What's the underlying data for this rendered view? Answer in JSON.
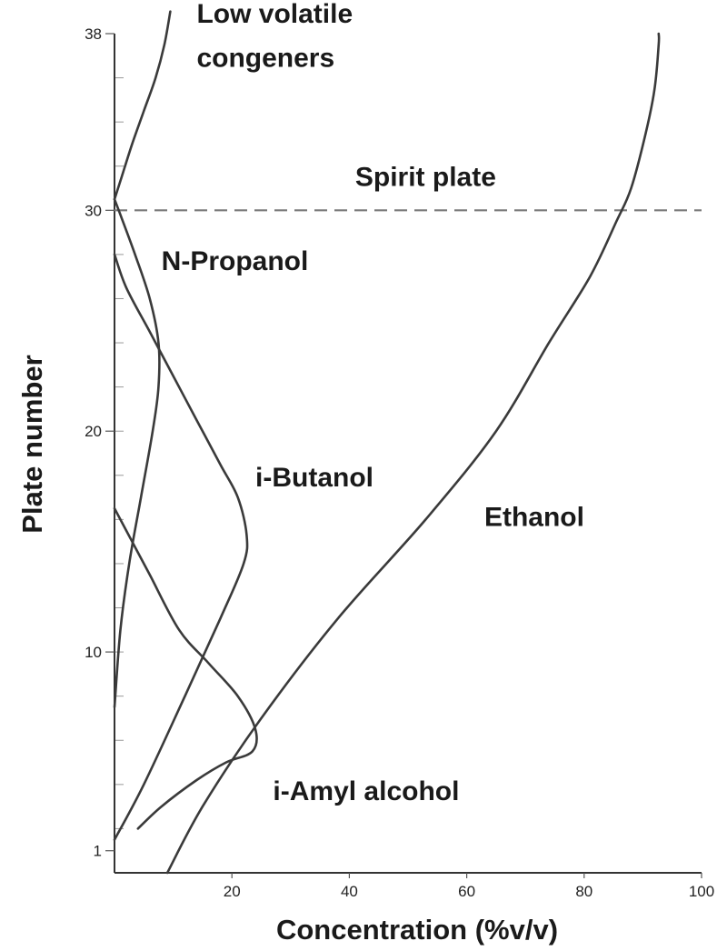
{
  "chart_data": {
    "type": "line",
    "title": "",
    "xlabel": "Concentration (%v/v)",
    "ylabel": "Plate number",
    "xlim": [
      0,
      100
    ],
    "ylim": [
      0,
      38
    ],
    "x_ticks": [
      20,
      40,
      60,
      80,
      100
    ],
    "y_ticks": [
      1,
      10,
      20,
      30,
      38
    ],
    "grid": false,
    "reference_line": {
      "label": "Spirit plate",
      "y": 30
    },
    "series": [
      {
        "name": "Ethanol",
        "points": [
          [
            9,
            0
          ],
          [
            15,
            3
          ],
          [
            25,
            7
          ],
          [
            38,
            11.5
          ],
          [
            53,
            16
          ],
          [
            65,
            20
          ],
          [
            74,
            24
          ],
          [
            81,
            27
          ],
          [
            85.5,
            29.5
          ],
          [
            88,
            31
          ],
          [
            90.5,
            33.5
          ],
          [
            92,
            35.5
          ],
          [
            92.7,
            37.5
          ],
          [
            92.7,
            38
          ]
        ]
      },
      {
        "name": "i-Amyl alcohol",
        "points": [
          [
            0,
            1.5
          ],
          [
            5,
            4
          ],
          [
            12,
            8
          ],
          [
            18,
            11.5
          ],
          [
            22,
            14
          ],
          [
            22.5,
            15.3
          ],
          [
            21,
            17
          ],
          [
            18,
            18.5
          ],
          [
            14,
            20.5
          ],
          [
            10,
            22.5
          ],
          [
            6,
            24.5
          ],
          [
            2,
            26.5
          ],
          [
            0,
            28
          ]
        ]
      },
      {
        "name": "i-Butanol",
        "points": [
          [
            0,
            16.5
          ],
          [
            3,
            15
          ],
          [
            6,
            13.5
          ],
          [
            11,
            11
          ],
          [
            16,
            9.5
          ],
          [
            21,
            8
          ],
          [
            24,
            6.5
          ],
          [
            23.5,
            5.5
          ],
          [
            19,
            5
          ],
          [
            14,
            4.2
          ],
          [
            8,
            3
          ],
          [
            4,
            2
          ]
        ]
      },
      {
        "name": "N-Propanol",
        "points": [
          [
            0,
            7.5
          ],
          [
            1,
            11
          ],
          [
            2.5,
            14
          ],
          [
            4.5,
            17
          ],
          [
            6.5,
            20
          ],
          [
            7.5,
            22
          ],
          [
            7.5,
            24
          ],
          [
            6,
            26
          ],
          [
            3.5,
            28
          ],
          [
            1,
            29.8
          ],
          [
            0,
            30.5
          ]
        ]
      },
      {
        "name": "Low volatile congeners",
        "points": [
          [
            0,
            30.5
          ],
          [
            1.2,
            31.5
          ],
          [
            3,
            33
          ],
          [
            5,
            34.5
          ],
          [
            7,
            36
          ],
          [
            8.5,
            37.5
          ],
          [
            9.5,
            39
          ]
        ]
      }
    ],
    "annotations": [
      {
        "text": "Low volatile",
        "x": 14,
        "y": 38.5
      },
      {
        "text": "congeners",
        "x": 14,
        "y": 36.5
      },
      {
        "text": "Spirit plate",
        "x": 41,
        "y": 31.1
      },
      {
        "text": "N-Propanol",
        "x": 8,
        "y": 27.3
      },
      {
        "text": "i-Butanol",
        "x": 24,
        "y": 17.5
      },
      {
        "text": "Ethanol",
        "x": 63,
        "y": 15.7
      },
      {
        "text": "i-Amyl alcohol",
        "x": 27,
        "y": 3.3
      }
    ]
  }
}
